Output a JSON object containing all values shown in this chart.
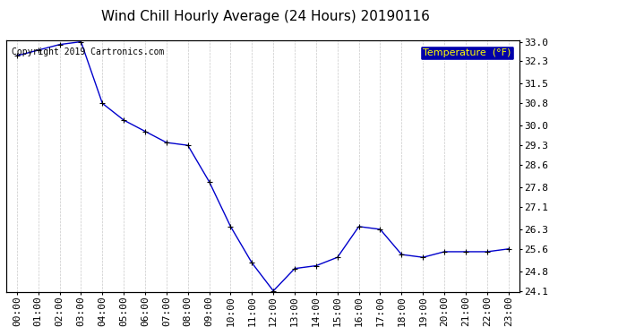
{
  "title": "Wind Chill Hourly Average (24 Hours) 20190116",
  "copyright": "Copyright 2019 Cartronics.com",
  "legend_label": "Temperature  (°F)",
  "hours": [
    "00:00",
    "01:00",
    "02:00",
    "03:00",
    "04:00",
    "05:00",
    "06:00",
    "07:00",
    "08:00",
    "09:00",
    "10:00",
    "11:00",
    "12:00",
    "13:00",
    "14:00",
    "15:00",
    "16:00",
    "17:00",
    "18:00",
    "19:00",
    "20:00",
    "21:00",
    "22:00",
    "23:00"
  ],
  "values": [
    32.5,
    32.7,
    32.9,
    33.0,
    30.8,
    30.2,
    29.8,
    29.4,
    29.3,
    28.0,
    26.4,
    25.1,
    24.1,
    24.9,
    25.0,
    25.3,
    26.4,
    26.3,
    25.4,
    25.3,
    25.5,
    25.5,
    25.5,
    25.6
  ],
  "ylim_min": 24.1,
  "ylim_max": 33.0,
  "yticks": [
    33.0,
    32.3,
    31.5,
    30.8,
    30.0,
    29.3,
    28.6,
    27.8,
    27.1,
    26.3,
    25.6,
    24.8,
    24.1
  ],
  "line_color": "#0000cc",
  "marker_color": "#000000",
  "bg_color": "#ffffff",
  "plot_bg_color": "#ffffff",
  "grid_color": "#bbbbbb",
  "legend_bg": "#0000aa",
  "legend_text_color": "#ffff00",
  "title_color": "#000000",
  "copyright_color": "#000000",
  "title_fontsize": 11,
  "copyright_fontsize": 7,
  "tick_fontsize": 8,
  "legend_fontsize": 8
}
